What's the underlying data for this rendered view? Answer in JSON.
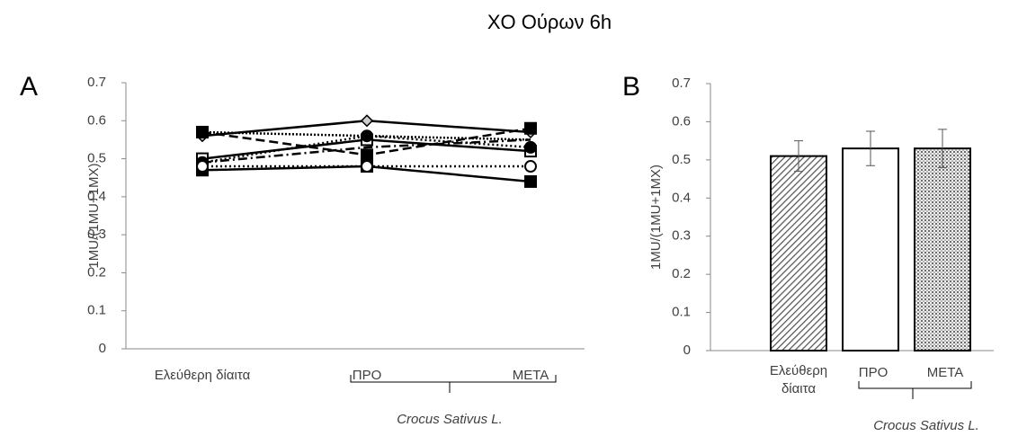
{
  "title": "ΧΟ Ούρων 6h",
  "chart_data": [
    {
      "type": "line",
      "panel": "A",
      "ylabel": "1MU/(1MU+1MX)",
      "group_label": "Crocus Sativus L.",
      "categories": [
        "Ελεύθερη δίαιτα",
        "ΠΡΟ",
        "ΜΕΤΑ"
      ],
      "ylim": [
        0,
        0.7
      ],
      "yticks": [
        0,
        0.1,
        0.2,
        0.3,
        0.4,
        0.5,
        0.6,
        0.7
      ],
      "series": [
        {
          "color": "#000000",
          "values": [
            0.56,
            0.6,
            0.57
          ]
        },
        {
          "color": "#000000",
          "values": [
            0.47,
            0.48,
            0.44
          ]
        },
        {
          "color": "#000000",
          "values": [
            0.5,
            0.55,
            0.52
          ]
        },
        {
          "color": "#000000",
          "values": [
            0.49,
            0.56,
            0.53
          ]
        },
        {
          "color": "#000000",
          "values": [
            0.48,
            0.48,
            0.48
          ]
        },
        {
          "color": "#000000",
          "values": [
            0.57,
            0.51,
            0.58
          ]
        },
        {
          "color": "#000000",
          "values": [
            0.49,
            0.53,
            0.55
          ]
        },
        {
          "color": "#000000",
          "values": [
            0.57,
            0.56,
            0.55
          ]
        }
      ]
    },
    {
      "type": "bar",
      "panel": "B",
      "ylabel": "1MU/(1MU+1MX)",
      "group_label": "Crocus Sativus L.",
      "categories": [
        "Ελεύθερη δίαιτα",
        "ΠΡΟ",
        "ΜΕΤΑ"
      ],
      "values": [
        0.51,
        0.53,
        0.53
      ],
      "errors": [
        0.04,
        0.045,
        0.05
      ],
      "ylim": [
        0,
        0.7
      ],
      "yticks": [
        0,
        0.1,
        0.2,
        0.3,
        0.4,
        0.5,
        0.6,
        0.7
      ]
    }
  ]
}
